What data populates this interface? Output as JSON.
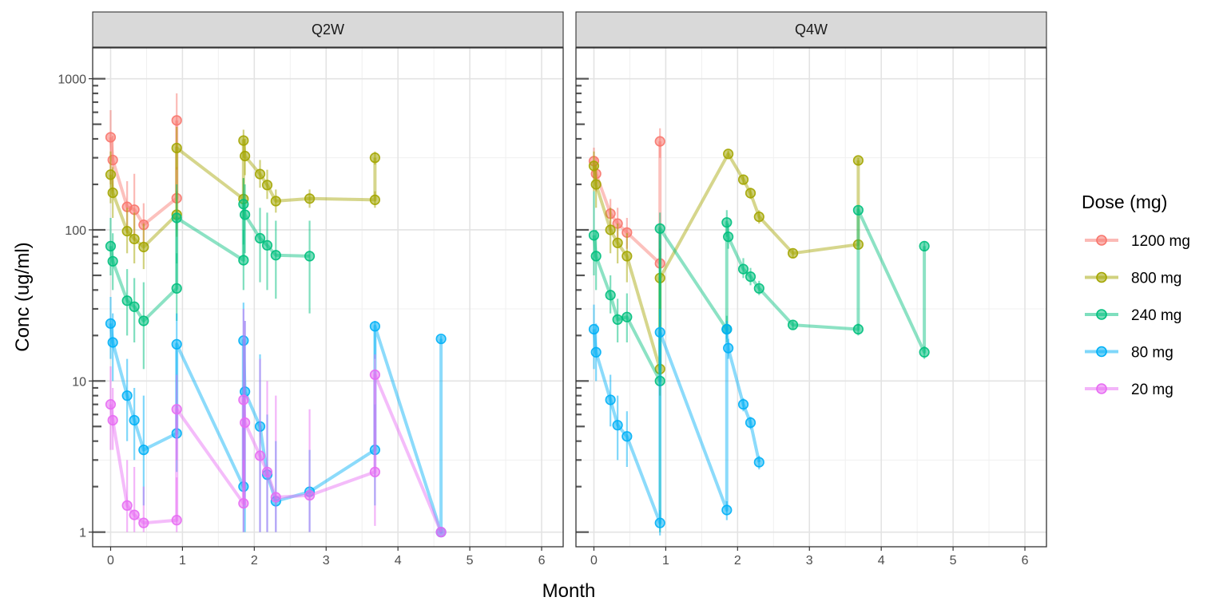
{
  "chart_data": {
    "type": "line",
    "facets": [
      "Q2W",
      "Q4W"
    ],
    "xlabel": "Month",
    "ylabel": "Conc (ug/ml)",
    "xlim": [
      -0.25,
      6.3
    ],
    "xticks": [
      0,
      1,
      2,
      3,
      4,
      5,
      6
    ],
    "xtick_labels": [
      "0",
      "1",
      "2",
      "3",
      "4",
      "5",
      "6"
    ],
    "yscale": "log10",
    "ylim": [
      0.8,
      1600
    ],
    "yticks": [
      1,
      10,
      100,
      1000
    ],
    "ytick_labels": [
      "1",
      "10",
      "100",
      "1000"
    ],
    "grid": true,
    "legend": {
      "title": "Dose (mg)",
      "position": "right",
      "entries": [
        "1200 mg",
        "800 mg",
        "240 mg",
        "80 mg",
        "20 mg"
      ]
    },
    "colors": {
      "1200 mg": "#F8766D",
      "800 mg": "#A3A500",
      "240 mg": "#00BF7D",
      "80 mg": "#00B0F6",
      "20 mg": "#E76BF3"
    },
    "panels": [
      {
        "facet": "Q2W",
        "series": [
          {
            "name": "1200 mg",
            "points": [
              {
                "x": 0,
                "y": 410,
                "lo": 200,
                "hi": 620
              },
              {
                "x": 0.03,
                "y": 290,
                "lo": 180,
                "hi": 420
              },
              {
                "x": 0.23,
                "y": 142,
                "lo": 95,
                "hi": 210
              },
              {
                "x": 0.33,
                "y": 136,
                "lo": 85,
                "hi": 235
              },
              {
                "x": 0.46,
                "y": 108,
                "lo": 80,
                "hi": 150
              },
              {
                "x": 0.92,
                "y": 162,
                "lo": 100,
                "hi": 260
              },
              {
                "x": 0.92,
                "y": 530,
                "lo": 350,
                "hi": 800
              }
            ]
          },
          {
            "name": "800 mg",
            "points": [
              {
                "x": 0,
                "y": 232,
                "lo": 150,
                "hi": 330
              },
              {
                "x": 0.03,
                "y": 176,
                "lo": 120,
                "hi": 260
              },
              {
                "x": 0.23,
                "y": 98,
                "lo": 70,
                "hi": 140
              },
              {
                "x": 0.33,
                "y": 87,
                "lo": 60,
                "hi": 130
              },
              {
                "x": 0.46,
                "y": 77,
                "lo": 55,
                "hi": 110
              },
              {
                "x": 0.92,
                "y": 126,
                "lo": 90,
                "hi": 180
              },
              {
                "x": 0.92,
                "y": 348,
                "lo": 250,
                "hi": 480
              },
              {
                "x": 1.85,
                "y": 160,
                "lo": 120,
                "hi": 220
              },
              {
                "x": 1.85,
                "y": 390,
                "lo": 300,
                "hi": 460
              },
              {
                "x": 1.87,
                "y": 308,
                "lo": 230,
                "hi": 400
              },
              {
                "x": 2.08,
                "y": 234,
                "lo": 190,
                "hi": 290
              },
              {
                "x": 2.18,
                "y": 198,
                "lo": 160,
                "hi": 250
              },
              {
                "x": 2.3,
                "y": 155,
                "lo": 130,
                "hi": 185
              },
              {
                "x": 2.77,
                "y": 161,
                "lo": 140,
                "hi": 185
              },
              {
                "x": 3.68,
                "y": 158,
                "lo": 140,
                "hi": 180
              },
              {
                "x": 3.68,
                "y": 300,
                "lo": 270,
                "hi": 330
              }
            ]
          },
          {
            "name": "240 mg",
            "points": [
              {
                "x": 0,
                "y": 78,
                "lo": 50,
                "hi": 120
              },
              {
                "x": 0.03,
                "y": 62,
                "lo": 40,
                "hi": 95
              },
              {
                "x": 0.23,
                "y": 34,
                "lo": 20,
                "hi": 55
              },
              {
                "x": 0.33,
                "y": 31,
                "lo": 18,
                "hi": 48
              },
              {
                "x": 0.46,
                "y": 25,
                "lo": 12,
                "hi": 45
              },
              {
                "x": 0.92,
                "y": 41,
                "lo": 25,
                "hi": 70
              },
              {
                "x": 0.92,
                "y": 120,
                "lo": 60,
                "hi": 200
              },
              {
                "x": 1.85,
                "y": 63,
                "lo": 40,
                "hi": 100
              },
              {
                "x": 1.85,
                "y": 148,
                "lo": 80,
                "hi": 220
              },
              {
                "x": 1.87,
                "y": 126,
                "lo": 70,
                "hi": 200
              },
              {
                "x": 2.08,
                "y": 88,
                "lo": 45,
                "hi": 140
              },
              {
                "x": 2.18,
                "y": 79,
                "lo": 40,
                "hi": 130
              },
              {
                "x": 2.3,
                "y": 68,
                "lo": 35,
                "hi": 115
              },
              {
                "x": 2.77,
                "y": 67,
                "lo": 28,
                "hi": 115
              }
            ]
          },
          {
            "name": "80 mg",
            "points": [
              {
                "x": 0,
                "y": 24,
                "lo": 14,
                "hi": 36
              },
              {
                "x": 0.03,
                "y": 18,
                "lo": 10,
                "hi": 28
              },
              {
                "x": 0.23,
                "y": 8,
                "lo": 4,
                "hi": 14
              },
              {
                "x": 0.33,
                "y": 5.5,
                "lo": 3,
                "hi": 9
              },
              {
                "x": 0.46,
                "y": 3.5,
                "lo": 1.5,
                "hi": 8
              },
              {
                "x": 0.92,
                "y": 4.5,
                "lo": 2.5,
                "hi": 8
              },
              {
                "x": 0.92,
                "y": 17.5,
                "lo": 8,
                "hi": 28
              },
              {
                "x": 1.85,
                "y": 2,
                "lo": 1,
                "hi": 5
              },
              {
                "x": 1.85,
                "y": 18.5,
                "lo": 2,
                "hi": 33
              },
              {
                "x": 1.87,
                "y": 8.5,
                "lo": 1,
                "hi": 25
              },
              {
                "x": 2.08,
                "y": 5,
                "lo": 1,
                "hi": 15
              },
              {
                "x": 2.18,
                "y": 2.4,
                "lo": 1,
                "hi": 6
              },
              {
                "x": 2.3,
                "y": 1.6,
                "lo": 1,
                "hi": 4
              },
              {
                "x": 2.77,
                "y": 1.85,
                "lo": 1,
                "hi": 3.5
              },
              {
                "x": 3.68,
                "y": 3.5,
                "lo": 1.5,
                "hi": 7
              },
              {
                "x": 3.68,
                "y": 23,
                "lo": 14,
                "hi": 25
              },
              {
                "x": 4.6,
                "y": 1,
                "lo": 1,
                "hi": 1
              },
              {
                "x": 4.6,
                "y": 19,
                "lo": 18,
                "hi": 20
              }
            ]
          },
          {
            "name": "20 mg",
            "points": [
              {
                "x": 0,
                "y": 7,
                "lo": 3.5,
                "hi": 12.5
              },
              {
                "x": 0.03,
                "y": 5.5,
                "lo": 3.5,
                "hi": 9
              },
              {
                "x": 0.23,
                "y": 1.5,
                "lo": 1,
                "hi": 3
              },
              {
                "x": 0.33,
                "y": 1.3,
                "lo": 1,
                "hi": 2.7
              },
              {
                "x": 0.46,
                "y": 1.15,
                "lo": 1,
                "hi": 2
              },
              {
                "x": 0.92,
                "y": 1.2,
                "lo": 1,
                "hi": 2.3
              },
              {
                "x": 0.92,
                "y": 6.5,
                "lo": 3,
                "hi": 11
              },
              {
                "x": 1.85,
                "y": 1.55,
                "lo": 1,
                "hi": 3
              },
              {
                "x": 1.85,
                "y": 7.5,
                "lo": 1.5,
                "hi": 30
              },
              {
                "x": 1.87,
                "y": 5.3,
                "lo": 1.5,
                "hi": 25
              },
              {
                "x": 2.08,
                "y": 3.2,
                "lo": 1,
                "hi": 14
              },
              {
                "x": 2.18,
                "y": 2.5,
                "lo": 1,
                "hi": 10
              },
              {
                "x": 2.3,
                "y": 1.7,
                "lo": 1,
                "hi": 8
              },
              {
                "x": 2.77,
                "y": 1.75,
                "lo": 1,
                "hi": 6.5
              },
              {
                "x": 3.68,
                "y": 2.5,
                "lo": 1.1,
                "hi": 5
              },
              {
                "x": 3.68,
                "y": 11,
                "lo": 5,
                "hi": 15
              },
              {
                "x": 4.6,
                "y": 1,
                "lo": 1,
                "hi": 1
              }
            ]
          }
        ]
      },
      {
        "facet": "Q4W",
        "series": [
          {
            "name": "1200 mg",
            "points": [
              {
                "x": 0,
                "y": 285,
                "lo": 220,
                "hi": 350
              },
              {
                "x": 0.03,
                "y": 235,
                "lo": 180,
                "hi": 300
              },
              {
                "x": 0.23,
                "y": 128,
                "lo": 100,
                "hi": 160
              },
              {
                "x": 0.33,
                "y": 110,
                "lo": 85,
                "hi": 140
              },
              {
                "x": 0.46,
                "y": 96,
                "lo": 75,
                "hi": 120
              },
              {
                "x": 0.92,
                "y": 60,
                "lo": 40,
                "hi": 85
              },
              {
                "x": 0.92,
                "y": 385,
                "lo": 300,
                "hi": 470
              }
            ]
          },
          {
            "name": "800 mg",
            "points": [
              {
                "x": 0,
                "y": 265,
                "lo": 180,
                "hi": 330
              },
              {
                "x": 0.03,
                "y": 200,
                "lo": 140,
                "hi": 270
              },
              {
                "x": 0.23,
                "y": 100,
                "lo": 70,
                "hi": 140
              },
              {
                "x": 0.33,
                "y": 82,
                "lo": 60,
                "hi": 110
              },
              {
                "x": 0.46,
                "y": 67,
                "lo": 45,
                "hi": 95
              },
              {
                "x": 0.92,
                "y": 12,
                "lo": 8,
                "hi": 20
              },
              {
                "x": 0.92,
                "y": 48,
                "lo": 30,
                "hi": 75
              },
              {
                "x": 1.87,
                "y": 318,
                "lo": 300,
                "hi": 335
              },
              {
                "x": 2.08,
                "y": 215,
                "lo": 200,
                "hi": 230
              },
              {
                "x": 2.18,
                "y": 175,
                "lo": 160,
                "hi": 190
              },
              {
                "x": 2.3,
                "y": 122,
                "lo": 110,
                "hi": 135
              },
              {
                "x": 2.77,
                "y": 70,
                "lo": 65,
                "hi": 75
              },
              {
                "x": 3.68,
                "y": 80,
                "lo": 75,
                "hi": 85
              },
              {
                "x": 3.68,
                "y": 288,
                "lo": 270,
                "hi": 300
              }
            ]
          },
          {
            "name": "240 mg",
            "points": [
              {
                "x": 0,
                "y": 92,
                "lo": 50,
                "hi": 180
              },
              {
                "x": 0.03,
                "y": 67,
                "lo": 40,
                "hi": 100
              },
              {
                "x": 0.23,
                "y": 37,
                "lo": 28,
                "hi": 50
              },
              {
                "x": 0.33,
                "y": 25.5,
                "lo": 18,
                "hi": 35
              },
              {
                "x": 0.46,
                "y": 26.5,
                "lo": 18,
                "hi": 38
              },
              {
                "x": 0.92,
                "y": 10,
                "lo": 1,
                "hi": 100
              },
              {
                "x": 0.92,
                "y": 102,
                "lo": 20,
                "hi": 130
              },
              {
                "x": 1.85,
                "y": 22,
                "lo": 18,
                "hi": 27
              },
              {
                "x": 1.85,
                "y": 112,
                "lo": 90,
                "hi": 135
              },
              {
                "x": 1.87,
                "y": 90,
                "lo": 75,
                "hi": 110
              },
              {
                "x": 2.08,
                "y": 55,
                "lo": 48,
                "hi": 65
              },
              {
                "x": 2.18,
                "y": 49,
                "lo": 43,
                "hi": 56
              },
              {
                "x": 2.3,
                "y": 41,
                "lo": 37,
                "hi": 46
              },
              {
                "x": 2.77,
                "y": 23.5,
                "lo": 22,
                "hi": 25
              },
              {
                "x": 3.68,
                "y": 22,
                "lo": 20,
                "hi": 24
              },
              {
                "x": 3.68,
                "y": 135,
                "lo": 125,
                "hi": 145
              },
              {
                "x": 4.6,
                "y": 15.5,
                "lo": 14,
                "hi": 17
              },
              {
                "x": 4.6,
                "y": 78,
                "lo": 72,
                "hi": 84
              }
            ]
          },
          {
            "name": "80 mg",
            "points": [
              {
                "x": 0,
                "y": 22,
                "lo": 12,
                "hi": 32
              },
              {
                "x": 0.03,
                "y": 15.5,
                "lo": 10,
                "hi": 24
              },
              {
                "x": 0.23,
                "y": 7.5,
                "lo": 5,
                "hi": 11
              },
              {
                "x": 0.33,
                "y": 5.1,
                "lo": 3,
                "hi": 8
              },
              {
                "x": 0.46,
                "y": 4.3,
                "lo": 2.7,
                "hi": 6.3
              },
              {
                "x": 0.92,
                "y": 1.15,
                "lo": 0.95,
                "hi": 1.4
              },
              {
                "x": 0.92,
                "y": 21,
                "lo": 12,
                "hi": 30
              },
              {
                "x": 1.85,
                "y": 1.4,
                "lo": 1.2,
                "hi": 1.6
              },
              {
                "x": 1.85,
                "y": 22,
                "lo": 19,
                "hi": 25
              },
              {
                "x": 1.87,
                "y": 16.5,
                "lo": 14,
                "hi": 19
              },
              {
                "x": 2.08,
                "y": 7,
                "lo": 6.3,
                "hi": 7.7
              },
              {
                "x": 2.18,
                "y": 5.3,
                "lo": 4.8,
                "hi": 5.8
              },
              {
                "x": 2.3,
                "y": 2.9,
                "lo": 2.6,
                "hi": 3.2
              }
            ]
          }
        ]
      }
    ]
  }
}
